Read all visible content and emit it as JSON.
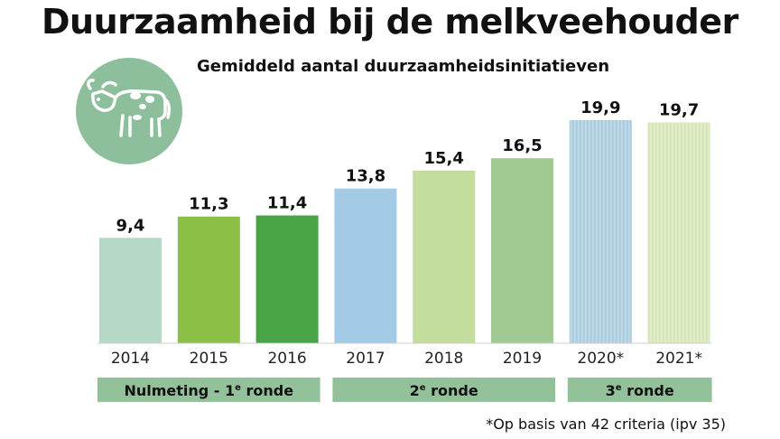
{
  "title": "Duurzaamheid bij de melkveehouder",
  "footnote": "*Op basis van 42 criteria (ipv 35)",
  "icon": "cow-icon",
  "colors": {
    "badge": "#8ebf9c",
    "group_band": "#93c19a",
    "bars": [
      "#b6d8c6",
      "#8cbf45",
      "#47a547",
      "#a3cbe6",
      "#c3dd9d",
      "#a1c993",
      "#a9cde0",
      "#d6e6b6"
    ]
  },
  "chart_data": {
    "type": "bar",
    "title": "Gemiddeld aantal duurzaamheidsinitiatieven",
    "xlabel": "",
    "ylabel": "",
    "categories": [
      "2014",
      "2015",
      "2016",
      "2017",
      "2018",
      "2019",
      "2020*",
      "2021*"
    ],
    "values": [
      9.4,
      11.3,
      11.4,
      13.8,
      15.4,
      16.5,
      19.9,
      19.7
    ],
    "value_labels": [
      "9,4",
      "11,3",
      "11,4",
      "13,8",
      "15,4",
      "16,5",
      "19,9",
      "19,7"
    ],
    "hatched": [
      false,
      false,
      false,
      false,
      false,
      false,
      true,
      true
    ],
    "grid": false,
    "ylim": [
      0,
      19.9
    ],
    "groups": [
      {
        "label": "Nulmeting - 1",
        "sup": "e",
        "suffix": " ronde",
        "from": 0,
        "to": 2
      },
      {
        "label": "2",
        "sup": "e",
        "suffix": " ronde",
        "from": 3,
        "to": 5
      },
      {
        "label": "3",
        "sup": "e",
        "suffix": " ronde",
        "from": 6,
        "to": 7
      }
    ]
  }
}
